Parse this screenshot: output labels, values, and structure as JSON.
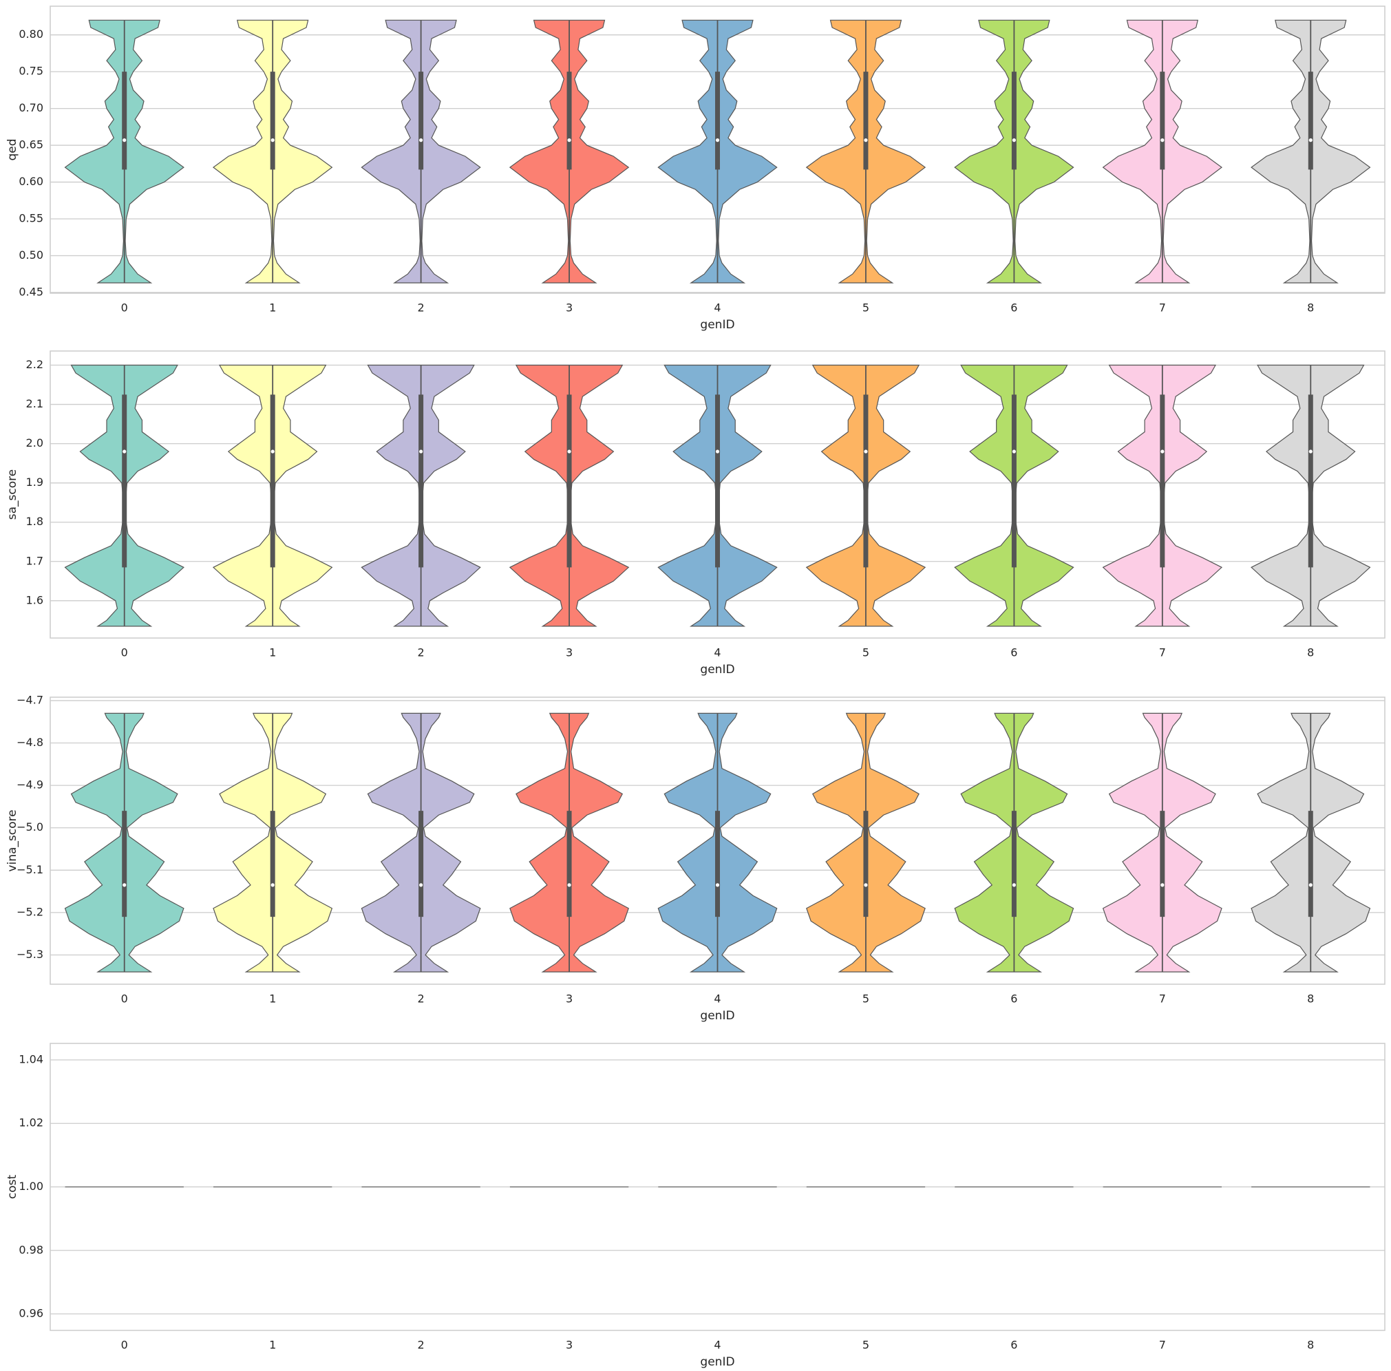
{
  "chart_data": [
    {
      "type": "violin",
      "xlabel": "genID",
      "ylabel": "qed",
      "categories": [
        "0",
        "1",
        "2",
        "3",
        "4",
        "5",
        "6",
        "7",
        "8"
      ],
      "colors": [
        "#8dd3c7",
        "#ffffb3",
        "#bebada",
        "#fb8072",
        "#80b1d3",
        "#fdb462",
        "#b3de69",
        "#fccde5",
        "#d9d9d9"
      ],
      "min": [
        0.463,
        0.463,
        0.463,
        0.463,
        0.463,
        0.463,
        0.463,
        0.463,
        0.463
      ],
      "q1": [
        0.617,
        0.617,
        0.617,
        0.617,
        0.617,
        0.617,
        0.617,
        0.617,
        0.617
      ],
      "median": [
        0.657,
        0.657,
        0.657,
        0.657,
        0.657,
        0.657,
        0.657,
        0.657,
        0.657
      ],
      "q3": [
        0.75,
        0.75,
        0.75,
        0.75,
        0.75,
        0.75,
        0.75,
        0.75,
        0.75
      ],
      "max": [
        0.82,
        0.82,
        0.82,
        0.82,
        0.82,
        0.82,
        0.82,
        0.82,
        0.82
      ],
      "density_y": [
        0.463,
        0.475,
        0.49,
        0.5,
        0.52,
        0.55,
        0.57,
        0.59,
        0.6,
        0.62,
        0.635,
        0.65,
        0.66,
        0.675,
        0.685,
        0.7,
        0.71,
        0.725,
        0.74,
        0.75,
        0.765,
        0.78,
        0.795,
        0.81,
        0.82
      ],
      "density": [
        30,
        15,
        5,
        2,
        1,
        2,
        6,
        25,
        45,
        67,
        50,
        20,
        12,
        18,
        12,
        20,
        22,
        10,
        6,
        10,
        20,
        10,
        12,
        38,
        40
      ],
      "ylim": [
        0.449,
        0.839
      ],
      "yticks": [
        0.45,
        {
          "value": 0.5,
          "label": "0.50"
        },
        0.55,
        {
          "value": 0.6,
          "label": "0.60"
        },
        0.65,
        {
          "value": 0.7,
          "label": "0.70"
        },
        0.75,
        {
          "value": 0.8,
          "label": "0.80"
        }
      ],
      "grid": true
    },
    {
      "type": "violin",
      "xlabel": "genID",
      "ylabel": "sa_score",
      "categories": [
        "0",
        "1",
        "2",
        "3",
        "4",
        "5",
        "6",
        "7",
        "8"
      ],
      "colors": [
        "#8dd3c7",
        "#ffffb3",
        "#bebada",
        "#fb8072",
        "#80b1d3",
        "#fdb462",
        "#b3de69",
        "#fccde5",
        "#d9d9d9"
      ],
      "min": [
        1.535,
        1.535,
        1.535,
        1.535,
        1.535,
        1.535,
        1.535,
        1.535,
        1.535
      ],
      "q1": [
        1.685,
        1.685,
        1.685,
        1.685,
        1.685,
        1.685,
        1.685,
        1.685,
        1.685
      ],
      "median": [
        1.98,
        1.98,
        1.98,
        1.98,
        1.98,
        1.98,
        1.98,
        1.98,
        1.98
      ],
      "q3": [
        2.125,
        2.125,
        2.125,
        2.125,
        2.125,
        2.125,
        2.125,
        2.125,
        2.125
      ],
      "max": [
        2.2,
        2.2,
        2.2,
        2.2,
        2.2,
        2.2,
        2.2,
        2.2,
        2.2
      ],
      "density_y": [
        1.535,
        1.55,
        1.58,
        1.6,
        1.62,
        1.65,
        1.685,
        1.71,
        1.74,
        1.77,
        1.8,
        1.85,
        1.9,
        1.93,
        1.96,
        1.98,
        2.0,
        2.03,
        2.06,
        2.09,
        2.12,
        2.15,
        2.18,
        2.2
      ],
      "density": [
        30,
        20,
        8,
        10,
        25,
        50,
        67,
        45,
        15,
        4,
        2,
        1,
        3,
        15,
        40,
        50,
        38,
        20,
        20,
        12,
        15,
        35,
        55,
        60
      ],
      "ylim": [
        1.505,
        2.236
      ],
      "yticks": [
        1.6,
        1.7,
        1.8,
        1.9,
        {
          "value": 2,
          "label": "2.0"
        },
        2.1,
        2.2
      ],
      "grid": true
    },
    {
      "type": "violin",
      "xlabel": "genID",
      "ylabel": "vina_score",
      "categories": [
        "0",
        "1",
        "2",
        "3",
        "4",
        "5",
        "6",
        "7",
        "8"
      ],
      "colors": [
        "#8dd3c7",
        "#ffffb3",
        "#bebada",
        "#fb8072",
        "#80b1d3",
        "#fdb462",
        "#b3de69",
        "#fccde5",
        "#d9d9d9"
      ],
      "min": [
        -5.34,
        -5.34,
        -5.34,
        -5.34,
        -5.34,
        -5.34,
        -5.34,
        -5.34,
        -5.34
      ],
      "q1": [
        -5.21,
        -5.21,
        -5.21,
        -5.21,
        -5.21,
        -5.21,
        -5.21,
        -5.21,
        -5.21
      ],
      "median": [
        -5.135,
        -5.135,
        -5.135,
        -5.135,
        -5.135,
        -5.135,
        -5.135,
        -5.135,
        -5.135
      ],
      "q3": [
        -4.96,
        -4.96,
        -4.96,
        -4.96,
        -4.96,
        -4.96,
        -4.96,
        -4.96,
        -4.96
      ],
      "max": [
        -4.73,
        -4.73,
        -4.73,
        -4.73,
        -4.73,
        -4.73,
        -4.73,
        -4.73,
        -4.73
      ],
      "density_y": [
        -5.34,
        -5.32,
        -5.3,
        -5.28,
        -5.25,
        -5.22,
        -5.19,
        -5.16,
        -5.135,
        -5.11,
        -5.08,
        -5.05,
        -5.02,
        -5.0,
        -4.97,
        -4.94,
        -4.92,
        -4.89,
        -4.86,
        -4.82,
        -4.79,
        -4.76,
        -4.74,
        -4.73
      ],
      "density": [
        30,
        15,
        5,
        12,
        40,
        62,
        67,
        40,
        25,
        35,
        45,
        25,
        5,
        3,
        20,
        55,
        60,
        35,
        5,
        2,
        5,
        12,
        20,
        22
      ],
      "ylim": [
        -5.369,
        -4.692
      ],
      "yticks": [
        {
          "value": -5.3,
          "label": "−5.3"
        },
        {
          "value": -5.2,
          "label": "−5.2"
        },
        {
          "value": -5.1,
          "label": "−5.1"
        },
        {
          "value": -5,
          "label": "−5.0"
        },
        {
          "value": -4.9,
          "label": "−4.9"
        },
        {
          "value": -4.8,
          "label": "−4.8"
        },
        {
          "value": -4.7,
          "label": "−4.7"
        }
      ],
      "grid": true
    },
    {
      "type": "violin",
      "xlabel": "genID",
      "ylabel": "cost",
      "categories": [
        "0",
        "1",
        "2",
        "3",
        "4",
        "5",
        "6",
        "7",
        "8"
      ],
      "colors": [
        "#8dd3c7",
        "#ffffb3",
        "#bebada",
        "#fb8072",
        "#80b1d3",
        "#fdb462",
        "#b3de69",
        "#fccde5",
        "#d9d9d9"
      ],
      "min": [
        1,
        1,
        1,
        1,
        1,
        1,
        1,
        1,
        1
      ],
      "q1": [
        1,
        1,
        1,
        1,
        1,
        1,
        1,
        1,
        1
      ],
      "median": [
        1,
        1,
        1,
        1,
        1,
        1,
        1,
        1,
        1
      ],
      "q3": [
        1,
        1,
        1,
        1,
        1,
        1,
        1,
        1,
        1
      ],
      "max": [
        1,
        1,
        1,
        1,
        1,
        1,
        1,
        1,
        1
      ],
      "ylim": [
        0.9548,
        1.0452
      ],
      "yticks": [
        0.96,
        0.98,
        {
          "value": 1,
          "label": "1.00"
        },
        1.02,
        1.04
      ],
      "grid": true
    }
  ]
}
